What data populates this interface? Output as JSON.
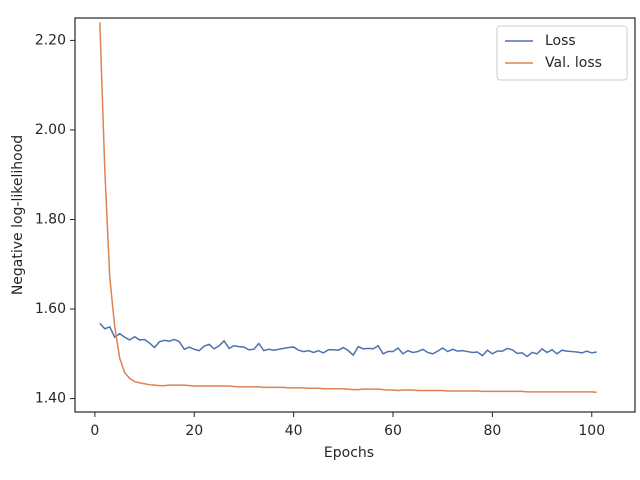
{
  "chart_data": {
    "type": "line",
    "x_label": "Epochs",
    "y_label": "Negative log-likelihood",
    "x": [
      1,
      2,
      3,
      4,
      5,
      6,
      7,
      8,
      9,
      10,
      11,
      12,
      13,
      14,
      15,
      16,
      17,
      18,
      19,
      20,
      21,
      22,
      23,
      24,
      25,
      26,
      27,
      28,
      29,
      30,
      31,
      32,
      33,
      34,
      35,
      36,
      37,
      38,
      39,
      40,
      41,
      42,
      43,
      44,
      45,
      46,
      47,
      48,
      49,
      50,
      51,
      52,
      53,
      54,
      55,
      56,
      57,
      58,
      59,
      60,
      61,
      62,
      63,
      64,
      65,
      66,
      67,
      68,
      69,
      70,
      71,
      72,
      73,
      74,
      75,
      76,
      77,
      78,
      79,
      80,
      81,
      82,
      83,
      84,
      85,
      86,
      87,
      88,
      89,
      90,
      91,
      92,
      93,
      94,
      95,
      96,
      97,
      98,
      99,
      100,
      101
    ],
    "series": [
      {
        "name": "Loss",
        "color": "#4c72b0",
        "values": [
          1.568,
          1.556,
          1.56,
          1.537,
          1.545,
          1.537,
          1.531,
          1.538,
          1.531,
          1.532,
          1.524,
          1.514,
          1.527,
          1.53,
          1.528,
          1.532,
          1.527,
          1.51,
          1.515,
          1.51,
          1.507,
          1.517,
          1.521,
          1.511,
          1.518,
          1.529,
          1.512,
          1.518,
          1.516,
          1.515,
          1.509,
          1.51,
          1.523,
          1.507,
          1.51,
          1.508,
          1.51,
          1.512,
          1.514,
          1.515,
          1.508,
          1.505,
          1.507,
          1.503,
          1.507,
          1.502,
          1.509,
          1.509,
          1.508,
          1.514,
          1.507,
          1.497,
          1.516,
          1.511,
          1.512,
          1.511,
          1.518,
          1.5,
          1.505,
          1.505,
          1.513,
          1.5,
          1.507,
          1.503,
          1.505,
          1.51,
          1.503,
          1.5,
          1.506,
          1.513,
          1.505,
          1.51,
          1.506,
          1.507,
          1.505,
          1.503,
          1.504,
          1.496,
          1.508,
          1.5,
          1.506,
          1.506,
          1.512,
          1.509,
          1.501,
          1.502,
          1.494,
          1.503,
          1.5,
          1.511,
          1.503,
          1.509,
          1.5,
          1.508,
          1.506,
          1.505,
          1.504,
          1.502,
          1.506,
          1.502,
          1.504
        ]
      },
      {
        "name": "Val. loss",
        "color": "#dd8452",
        "values": [
          2.24,
          1.91,
          1.67,
          1.56,
          1.49,
          1.458,
          1.445,
          1.438,
          1.435,
          1.433,
          1.431,
          1.43,
          1.429,
          1.429,
          1.43,
          1.43,
          1.43,
          1.43,
          1.429,
          1.428,
          1.428,
          1.428,
          1.428,
          1.428,
          1.428,
          1.428,
          1.428,
          1.427,
          1.426,
          1.426,
          1.426,
          1.426,
          1.426,
          1.425,
          1.425,
          1.425,
          1.425,
          1.425,
          1.424,
          1.424,
          1.424,
          1.424,
          1.423,
          1.423,
          1.423,
          1.422,
          1.422,
          1.422,
          1.422,
          1.422,
          1.421,
          1.42,
          1.42,
          1.421,
          1.421,
          1.421,
          1.421,
          1.42,
          1.419,
          1.419,
          1.418,
          1.419,
          1.419,
          1.419,
          1.418,
          1.418,
          1.418,
          1.418,
          1.418,
          1.418,
          1.417,
          1.417,
          1.417,
          1.417,
          1.417,
          1.417,
          1.417,
          1.416,
          1.416,
          1.416,
          1.416,
          1.416,
          1.416,
          1.416,
          1.416,
          1.416,
          1.415,
          1.415,
          1.415,
          1.415,
          1.415,
          1.415,
          1.415,
          1.415,
          1.415,
          1.415,
          1.415,
          1.415,
          1.415,
          1.415,
          1.414
        ]
      }
    ],
    "xlim": [
      -4,
      108.7
    ],
    "xticks": [
      0,
      20,
      40,
      60,
      80,
      100
    ],
    "ylim": [
      1.37,
      2.25
    ],
    "yticks": [
      {
        "value": 1.4,
        "label": "1.40"
      },
      {
        "value": 1.6,
        "label": "1.60"
      },
      {
        "value": 1.8,
        "label": "1.80"
      },
      {
        "value": 2.0,
        "label": "2.00"
      },
      {
        "value": 2.2,
        "label": "2.20"
      }
    ],
    "legend": "upper right",
    "grid": false
  }
}
